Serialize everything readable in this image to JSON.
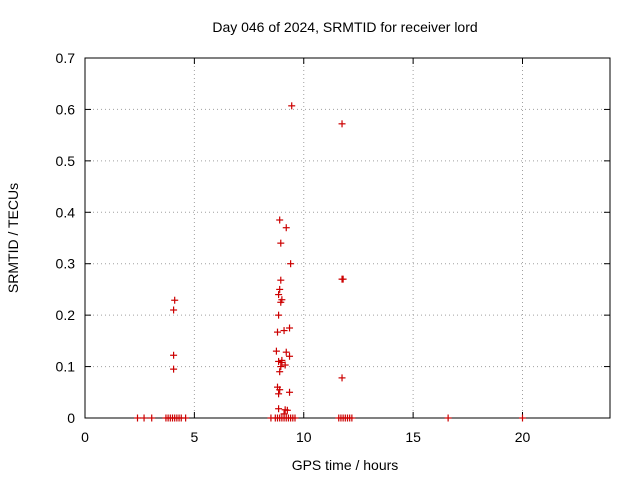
{
  "chart_data": {
    "type": "scatter",
    "title": "Day 046 of 2024, SRMTID for receiver lord",
    "xlabel": "GPS time / hours",
    "ylabel": "SRMTID / TECUs",
    "xlim": [
      0,
      24
    ],
    "ylim": [
      0,
      0.7
    ],
    "xticks": [
      0,
      5,
      10,
      15,
      20
    ],
    "xtick_labels": [
      "0",
      "5",
      "10",
      "15",
      "20"
    ],
    "yticks": [
      0,
      0.1,
      0.2,
      0.3,
      0.4,
      0.5,
      0.6,
      0.7
    ],
    "ytick_labels": [
      "0",
      "0.1",
      "0.2",
      "0.3",
      "0.4",
      "0.5",
      "0.6",
      "0.7"
    ],
    "grid": true,
    "marker": "plus",
    "color": "#cc0000",
    "series": [
      {
        "points": [
          [
            2.4,
            0
          ],
          [
            2.7,
            0
          ],
          [
            3.05,
            0
          ],
          [
            3.7,
            0
          ],
          [
            3.8,
            0
          ],
          [
            3.9,
            0
          ],
          [
            4.0,
            0
          ],
          [
            4.1,
            0
          ],
          [
            4.2,
            0
          ],
          [
            4.3,
            0
          ],
          [
            4.4,
            0
          ],
          [
            4.05,
            0.095
          ],
          [
            4.05,
            0.122
          ],
          [
            4.05,
            0.21
          ],
          [
            4.1,
            0.229
          ],
          [
            4.6,
            0
          ],
          [
            8.5,
            0
          ],
          [
            8.7,
            0
          ],
          [
            8.8,
            0
          ],
          [
            8.9,
            0
          ],
          [
            9.0,
            0
          ],
          [
            9.1,
            0
          ],
          [
            9.2,
            0
          ],
          [
            9.3,
            0
          ],
          [
            9.4,
            0
          ],
          [
            9.5,
            0
          ],
          [
            9.6,
            0
          ],
          [
            8.85,
            0.018
          ],
          [
            8.85,
            0.047
          ],
          [
            8.9,
            0.055
          ],
          [
            8.8,
            0.06
          ],
          [
            8.9,
            0.09
          ],
          [
            8.95,
            0.1
          ],
          [
            9.0,
            0.108
          ],
          [
            8.85,
            0.11
          ],
          [
            9.0,
            0.112
          ],
          [
            8.75,
            0.13
          ],
          [
            9.15,
            0.103
          ],
          [
            9.2,
            0.128
          ],
          [
            9.35,
            0.12
          ],
          [
            8.8,
            0.167
          ],
          [
            9.1,
            0.17
          ],
          [
            9.35,
            0.175
          ],
          [
            8.85,
            0.2
          ],
          [
            8.95,
            0.225
          ],
          [
            9.0,
            0.23
          ],
          [
            8.85,
            0.24
          ],
          [
            8.9,
            0.25
          ],
          [
            8.95,
            0.268
          ],
          [
            9.4,
            0.3
          ],
          [
            8.95,
            0.34
          ],
          [
            9.2,
            0.37
          ],
          [
            8.9,
            0.385
          ],
          [
            9.45,
            0.607
          ],
          [
            9.15,
            0.016
          ],
          [
            9.25,
            0.015
          ],
          [
            9.35,
            0.05
          ],
          [
            9.1,
            0.008
          ],
          [
            11.6,
            0
          ],
          [
            11.7,
            0
          ],
          [
            11.8,
            0
          ],
          [
            11.9,
            0
          ],
          [
            12.0,
            0
          ],
          [
            12.1,
            0
          ],
          [
            12.2,
            0
          ],
          [
            11.75,
            0.078
          ],
          [
            11.75,
            0.27
          ],
          [
            11.8,
            0.27
          ],
          [
            11.75,
            0.572
          ],
          [
            16.6,
            0
          ],
          [
            20.0,
            0
          ]
        ]
      }
    ]
  }
}
